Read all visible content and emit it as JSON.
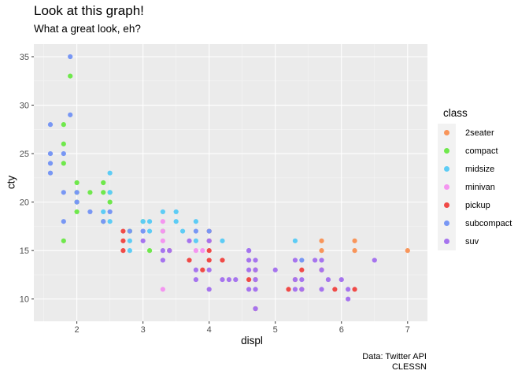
{
  "chart_data": {
    "type": "scatter",
    "title": "Look at this graph!",
    "subtitle": "What a great look, eh?",
    "caption": [
      "Data: Twitter API",
      "CLESSN"
    ],
    "xlabel": "displ",
    "ylabel": "cty",
    "xlim": [
      1.35,
      7.3
    ],
    "ylim": [
      7.7,
      36.3
    ],
    "xticks": [
      2,
      3,
      4,
      5,
      6,
      7
    ],
    "yticks": [
      10,
      15,
      20,
      25,
      30,
      35
    ],
    "grid": true,
    "legend_title": "class",
    "legend_position": "right",
    "series": [
      {
        "name": "2seater",
        "color": "#F8766D",
        "points": [
          [
            5.7,
            16
          ],
          [
            5.7,
            15
          ],
          [
            6.2,
            16
          ],
          [
            6.2,
            15
          ],
          [
            7.0,
            15
          ]
        ]
      },
      {
        "name": "compact",
        "color": "#7CAE00",
        "points": [
          [
            1.8,
            28
          ],
          [
            1.8,
            24
          ],
          [
            2.0,
            21
          ],
          [
            2.0,
            22
          ],
          [
            2.8,
            17
          ],
          [
            2.4,
            22
          ],
          [
            2.4,
            21
          ],
          [
            2.5,
            21
          ],
          [
            1.8,
            26
          ],
          [
            1.9,
            33
          ],
          [
            2.0,
            20
          ],
          [
            2.0,
            19
          ],
          [
            2.2,
            21
          ],
          [
            2.5,
            20
          ],
          [
            1.8,
            16
          ],
          [
            2.8,
            17
          ],
          [
            3.1,
            15
          ],
          [
            3.0,
            18
          ],
          [
            3.3,
            17
          ],
          [
            2.4,
            18
          ]
        ]
      },
      {
        "name": "midsize",
        "color": "#00B4EF",
        "points": [
          [
            2.5,
            23
          ],
          [
            2.5,
            18
          ],
          [
            2.4,
            19
          ],
          [
            2.8,
            16
          ],
          [
            3.0,
            18
          ],
          [
            3.1,
            18
          ],
          [
            3.3,
            19
          ],
          [
            3.5,
            19
          ],
          [
            3.6,
            17
          ],
          [
            3.8,
            18
          ],
          [
            3.8,
            16
          ],
          [
            2.8,
            15
          ],
          [
            3.1,
            17
          ],
          [
            4.2,
            16
          ],
          [
            5.3,
            16
          ],
          [
            3.5,
            18
          ],
          [
            3.0,
            17
          ],
          [
            2.5,
            21
          ]
        ]
      },
      {
        "name": "minivan",
        "color": "#E76BF3",
        "points": [
          [
            3.3,
            18
          ],
          [
            3.3,
            16
          ],
          [
            3.3,
            17
          ],
          [
            3.8,
            15
          ],
          [
            3.3,
            11
          ],
          [
            3.0,
            17
          ],
          [
            3.9,
            15
          ]
        ]
      },
      {
        "name": "pickup",
        "color": "#F8766D",
        "points": [
          [
            2.7,
            15
          ],
          [
            2.7,
            17
          ],
          [
            2.7,
            16
          ],
          [
            3.4,
            15
          ],
          [
            4.0,
            16
          ],
          [
            4.0,
            15
          ],
          [
            4.2,
            14
          ],
          [
            3.9,
            13
          ],
          [
            4.7,
            13
          ],
          [
            4.7,
            12
          ],
          [
            5.2,
            11
          ],
          [
            5.7,
            13
          ],
          [
            5.9,
            11
          ],
          [
            3.7,
            14
          ],
          [
            4.0,
            14
          ],
          [
            4.0,
            17
          ],
          [
            4.7,
            9
          ],
          [
            4.6,
            12
          ],
          [
            5.4,
            13
          ],
          [
            6.2,
            11
          ],
          [
            5.3,
            12
          ],
          [
            5.4,
            11
          ]
        ]
      },
      {
        "name": "subcompact",
        "color": "#619CFF",
        "points": [
          [
            1.6,
            28
          ],
          [
            1.6,
            24
          ],
          [
            1.6,
            25
          ],
          [
            1.6,
            23
          ],
          [
            1.8,
            25
          ],
          [
            1.8,
            21
          ],
          [
            1.8,
            18
          ],
          [
            1.9,
            35
          ],
          [
            1.9,
            29
          ],
          [
            2.0,
            21
          ],
          [
            2.0,
            20
          ],
          [
            2.2,
            19
          ],
          [
            2.5,
            19
          ],
          [
            2.4,
            18
          ],
          [
            2.8,
            17
          ],
          [
            3.0,
            17
          ],
          [
            4.6,
            15
          ],
          [
            5.4,
            14
          ],
          [
            4.0,
            17
          ],
          [
            3.8,
            17
          ]
        ]
      },
      {
        "name": "suv",
        "color": "#C77CFF",
        "points": [
          [
            4.2,
            12
          ],
          [
            4.7,
            14
          ],
          [
            4.7,
            12
          ],
          [
            5.3,
            12
          ],
          [
            5.3,
            11
          ],
          [
            5.7,
            11
          ],
          [
            6.5,
            14
          ],
          [
            4.7,
            9
          ],
          [
            4.0,
            13
          ],
          [
            4.3,
            12
          ],
          [
            5.0,
            13
          ],
          [
            5.7,
            13
          ],
          [
            6.0,
            12
          ],
          [
            6.1,
            11
          ],
          [
            3.3,
            14
          ],
          [
            3.8,
            13
          ],
          [
            3.8,
            12
          ],
          [
            4.6,
            11
          ],
          [
            5.4,
            12
          ],
          [
            4.7,
            13
          ],
          [
            5.6,
            14
          ],
          [
            3.0,
            16
          ],
          [
            4.0,
            11
          ],
          [
            4.6,
            14
          ],
          [
            5.3,
            14
          ],
          [
            6.1,
            10
          ],
          [
            5.8,
            12
          ],
          [
            4.4,
            12
          ],
          [
            3.3,
            15
          ],
          [
            4.0,
            16
          ],
          [
            4.6,
            13
          ],
          [
            3.7,
            16
          ],
          [
            3.4,
            15
          ],
          [
            4.6,
            15
          ],
          [
            5.4,
            11
          ],
          [
            4.7,
            11
          ],
          [
            5.7,
            14
          ]
        ]
      }
    ]
  },
  "legend_colors": {
    "2seater": "#F8955A",
    "compact": "#6FE84C",
    "midsize": "#5DCCF5",
    "minivan": "#F496F0",
    "pickup": "#F04A47",
    "subcompact": "#7897F4",
    "suv": "#A674EE"
  }
}
